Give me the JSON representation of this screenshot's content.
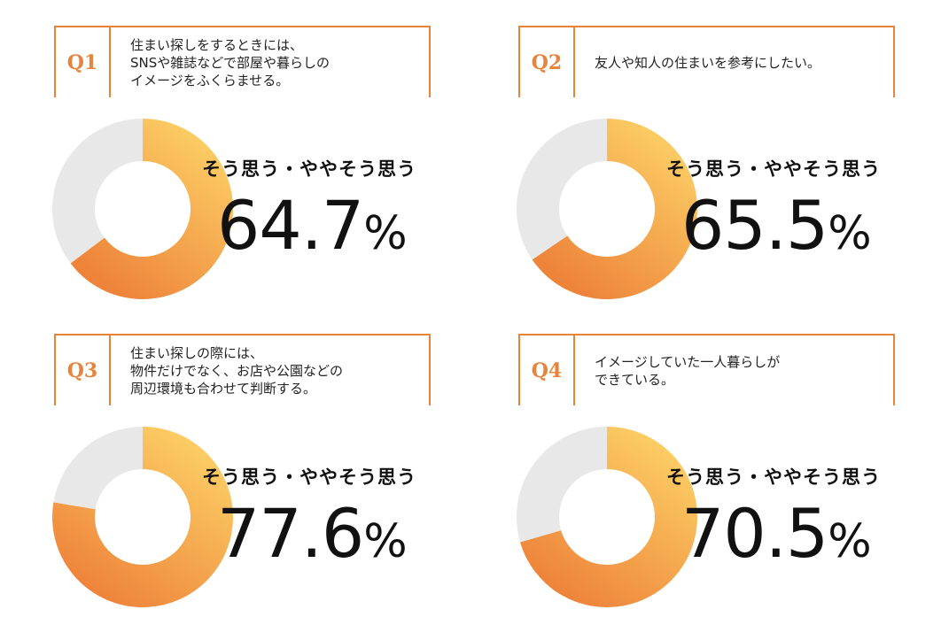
{
  "colors": {
    "accent": "#e8833a",
    "rest": "#e8e8e8",
    "grad_start": "#fdd468",
    "grad_end": "#ee833a"
  },
  "panels": [
    {
      "q": "Q1",
      "question": "住まい探しをするときには、\nSNSや雑誌などで部屋や暮らしの\nイメージをふくらませる。",
      "label": "そう思う・ややそう思う",
      "value": "64.7",
      "unit": "%"
    },
    {
      "q": "Q2",
      "question": "友人や知人の住まいを参考にしたい。",
      "label": "そう思う・ややそう思う",
      "value": "65.5",
      "unit": "%"
    },
    {
      "q": "Q3",
      "question": "住まい探しの際には、\n物件だけでなく、お店や公園などの\n周辺環境も合わせて判断する。",
      "label": "そう思う・ややそう思う",
      "value": "77.6",
      "unit": "%"
    },
    {
      "q": "Q4",
      "question": "イメージしていた一人暮らしが\nできている。",
      "label": "そう思う・ややそう思う",
      "value": "70.5",
      "unit": "%"
    }
  ],
  "chart_data": [
    {
      "type": "pie",
      "title": "Q1",
      "labels": [
        "そう思う・ややそう思う",
        ""
      ],
      "values": [
        64.7,
        35.3
      ]
    },
    {
      "type": "pie",
      "title": "Q2",
      "labels": [
        "そう思う・ややそう思う",
        ""
      ],
      "values": [
        65.5,
        34.5
      ]
    },
    {
      "type": "pie",
      "title": "Q3",
      "labels": [
        "そう思う・ややそう思う",
        ""
      ],
      "values": [
        77.6,
        22.4
      ]
    },
    {
      "type": "pie",
      "title": "Q4",
      "labels": [
        "そう思う・ややそう思う",
        ""
      ],
      "values": [
        70.5,
        29.5
      ]
    }
  ]
}
